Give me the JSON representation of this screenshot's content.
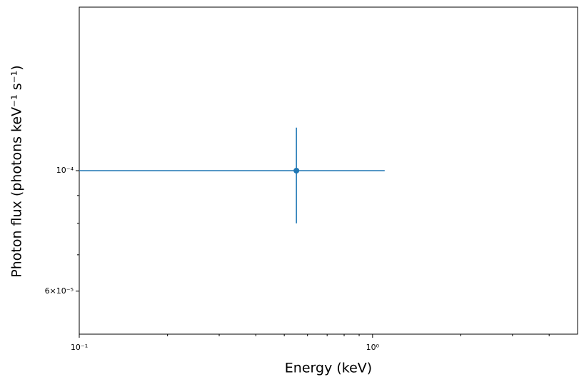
{
  "chart_data": {
    "type": "scatter",
    "xlabel": "Energy (keV)",
    "ylabel": "Photon flux (photons keV⁻¹ s⁻¹)",
    "xscale": "log",
    "yscale": "log",
    "xlim": [
      0.1,
      5
    ],
    "ylim": [
      5e-05,
      0.0002
    ],
    "xticks": [
      {
        "value": 0.1,
        "label": "10⁻¹"
      },
      {
        "value": 1,
        "label": "10⁰"
      }
    ],
    "xminorticks": [
      0.2,
      0.3,
      0.4,
      0.5,
      0.6,
      0.7,
      0.8,
      0.9,
      2,
      3,
      4
    ],
    "yticks": [
      {
        "value": 0.0001,
        "label": "10⁻⁴"
      },
      {
        "value": 6e-05,
        "label": "6×10⁻⁵"
      }
    ],
    "yminorticks": [
      7e-05,
      8e-05,
      9e-05
    ],
    "series": [
      {
        "color": "#1f77b4",
        "x": [
          0.55
        ],
        "xerr": [
          0.55
        ],
        "values": [
          0.0001
        ],
        "yerr": [
          2e-05
        ]
      }
    ]
  }
}
